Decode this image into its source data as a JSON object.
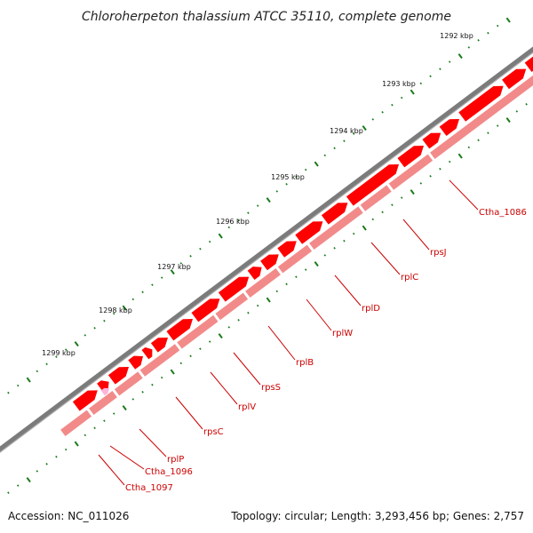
{
  "title": "Chloroherpeton thalassium ATCC 35110, complete genome",
  "accession": "Accession: NC_011026",
  "summary": "Topology: circular; Length: 3,293,456 bp; Genes: 2,757",
  "colors": {
    "backbone": "#7b7b7b",
    "gene_forward": "#ff0000",
    "gene_reverse": "#f28a8a",
    "gene_highlight": "#ffb3d9",
    "tick": "#1a7a1a",
    "label": "#cc0000"
  },
  "tick_labels": [
    "1292 kbp",
    "1293 kbp",
    "1294 kbp",
    "1295 kbp",
    "1296 kbp",
    "1297 kbp",
    "1298 kbp",
    "1299 kbp"
  ],
  "gene_labels": [
    "Ctha_1086",
    "rpsJ",
    "rplC",
    "rplD",
    "rplW",
    "rplB",
    "rpsS",
    "rplV",
    "rpsC",
    "rplP",
    "Ctha_1096",
    "Ctha_1097"
  ]
}
